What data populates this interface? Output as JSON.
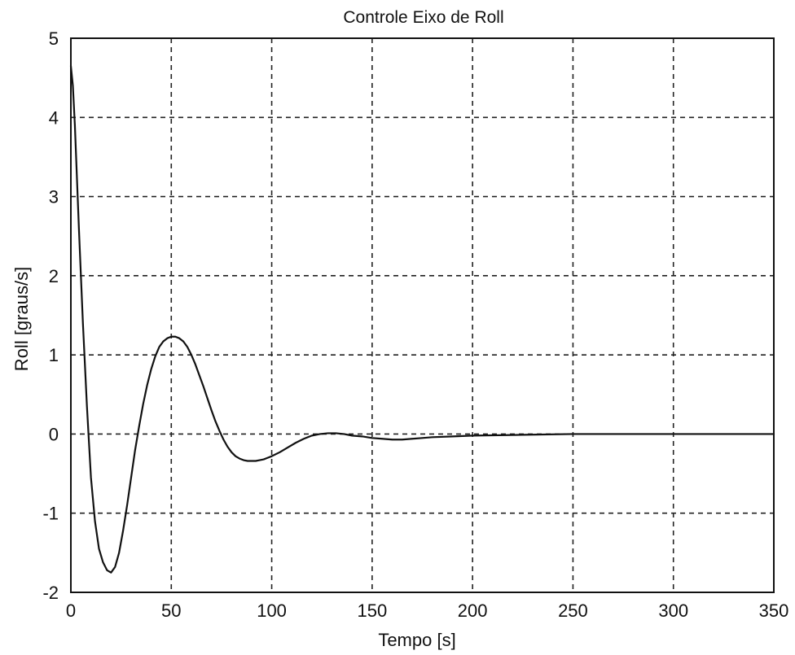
{
  "chart_data": {
    "type": "line",
    "title": "Controle Eixo de Roll",
    "xlabel": "Tempo [s]",
    "ylabel": "Roll [graus/s]",
    "xlim": [
      0,
      350
    ],
    "ylim": [
      -2,
      5
    ],
    "grid": true,
    "x_ticks": [
      {
        "value": 0,
        "label": "0"
      },
      {
        "value": 50,
        "label": "50"
      },
      {
        "value": 100,
        "label": "100"
      },
      {
        "value": 150,
        "label": "150"
      },
      {
        "value": 200,
        "label": "200"
      },
      {
        "value": 250,
        "label": "250"
      },
      {
        "value": 300,
        "label": "300"
      },
      {
        "value": 350,
        "label": "350"
      }
    ],
    "y_ticks": [
      {
        "value": -2,
        "label": "-2"
      },
      {
        "value": -1,
        "label": "-1"
      },
      {
        "value": 0,
        "label": "0"
      },
      {
        "value": 1,
        "label": "1"
      },
      {
        "value": 2,
        "label": "2"
      },
      {
        "value": 3,
        "label": "3"
      },
      {
        "value": 4,
        "label": "4"
      },
      {
        "value": 5,
        "label": "5"
      }
    ],
    "series": [
      {
        "color": "#111111",
        "points": [
          [
            0,
            4.65
          ],
          [
            1,
            4.4
          ],
          [
            2,
            3.9
          ],
          [
            4,
            2.6
          ],
          [
            6,
            1.4
          ],
          [
            8,
            0.35
          ],
          [
            10,
            -0.55
          ],
          [
            12,
            -1.1
          ],
          [
            14,
            -1.45
          ],
          [
            16,
            -1.62
          ],
          [
            18,
            -1.72
          ],
          [
            20,
            -1.75
          ],
          [
            22,
            -1.68
          ],
          [
            24,
            -1.5
          ],
          [
            26,
            -1.22
          ],
          [
            28,
            -0.9
          ],
          [
            30,
            -0.55
          ],
          [
            32,
            -0.2
          ],
          [
            34,
            0.1
          ],
          [
            36,
            0.38
          ],
          [
            38,
            0.62
          ],
          [
            40,
            0.82
          ],
          [
            42,
            0.98
          ],
          [
            44,
            1.1
          ],
          [
            46,
            1.17
          ],
          [
            48,
            1.21
          ],
          [
            50,
            1.23
          ],
          [
            52,
            1.23
          ],
          [
            54,
            1.21
          ],
          [
            56,
            1.17
          ],
          [
            58,
            1.1
          ],
          [
            60,
            1.0
          ],
          [
            62,
            0.88
          ],
          [
            64,
            0.74
          ],
          [
            66,
            0.6
          ],
          [
            68,
            0.45
          ],
          [
            70,
            0.3
          ],
          [
            72,
            0.16
          ],
          [
            74,
            0.04
          ],
          [
            76,
            -0.07
          ],
          [
            78,
            -0.16
          ],
          [
            80,
            -0.23
          ],
          [
            82,
            -0.28
          ],
          [
            84,
            -0.31
          ],
          [
            86,
            -0.33
          ],
          [
            88,
            -0.34
          ],
          [
            90,
            -0.34
          ],
          [
            92,
            -0.34
          ],
          [
            94,
            -0.33
          ],
          [
            96,
            -0.32
          ],
          [
            98,
            -0.3
          ],
          [
            100,
            -0.28
          ],
          [
            104,
            -0.23
          ],
          [
            108,
            -0.17
          ],
          [
            112,
            -0.11
          ],
          [
            116,
            -0.06
          ],
          [
            120,
            -0.02
          ],
          [
            124,
            0.0
          ],
          [
            128,
            0.01
          ],
          [
            132,
            0.01
          ],
          [
            136,
            0.0
          ],
          [
            140,
            -0.02
          ],
          [
            145,
            -0.03
          ],
          [
            150,
            -0.05
          ],
          [
            155,
            -0.06
          ],
          [
            160,
            -0.07
          ],
          [
            165,
            -0.07
          ],
          [
            170,
            -0.06
          ],
          [
            175,
            -0.05
          ],
          [
            180,
            -0.04
          ],
          [
            190,
            -0.03
          ],
          [
            200,
            -0.02
          ],
          [
            225,
            -0.01
          ],
          [
            250,
            0.0
          ],
          [
            275,
            0.0
          ],
          [
            300,
            0.0
          ],
          [
            325,
            0.0
          ],
          [
            350,
            0.0
          ]
        ]
      }
    ]
  }
}
